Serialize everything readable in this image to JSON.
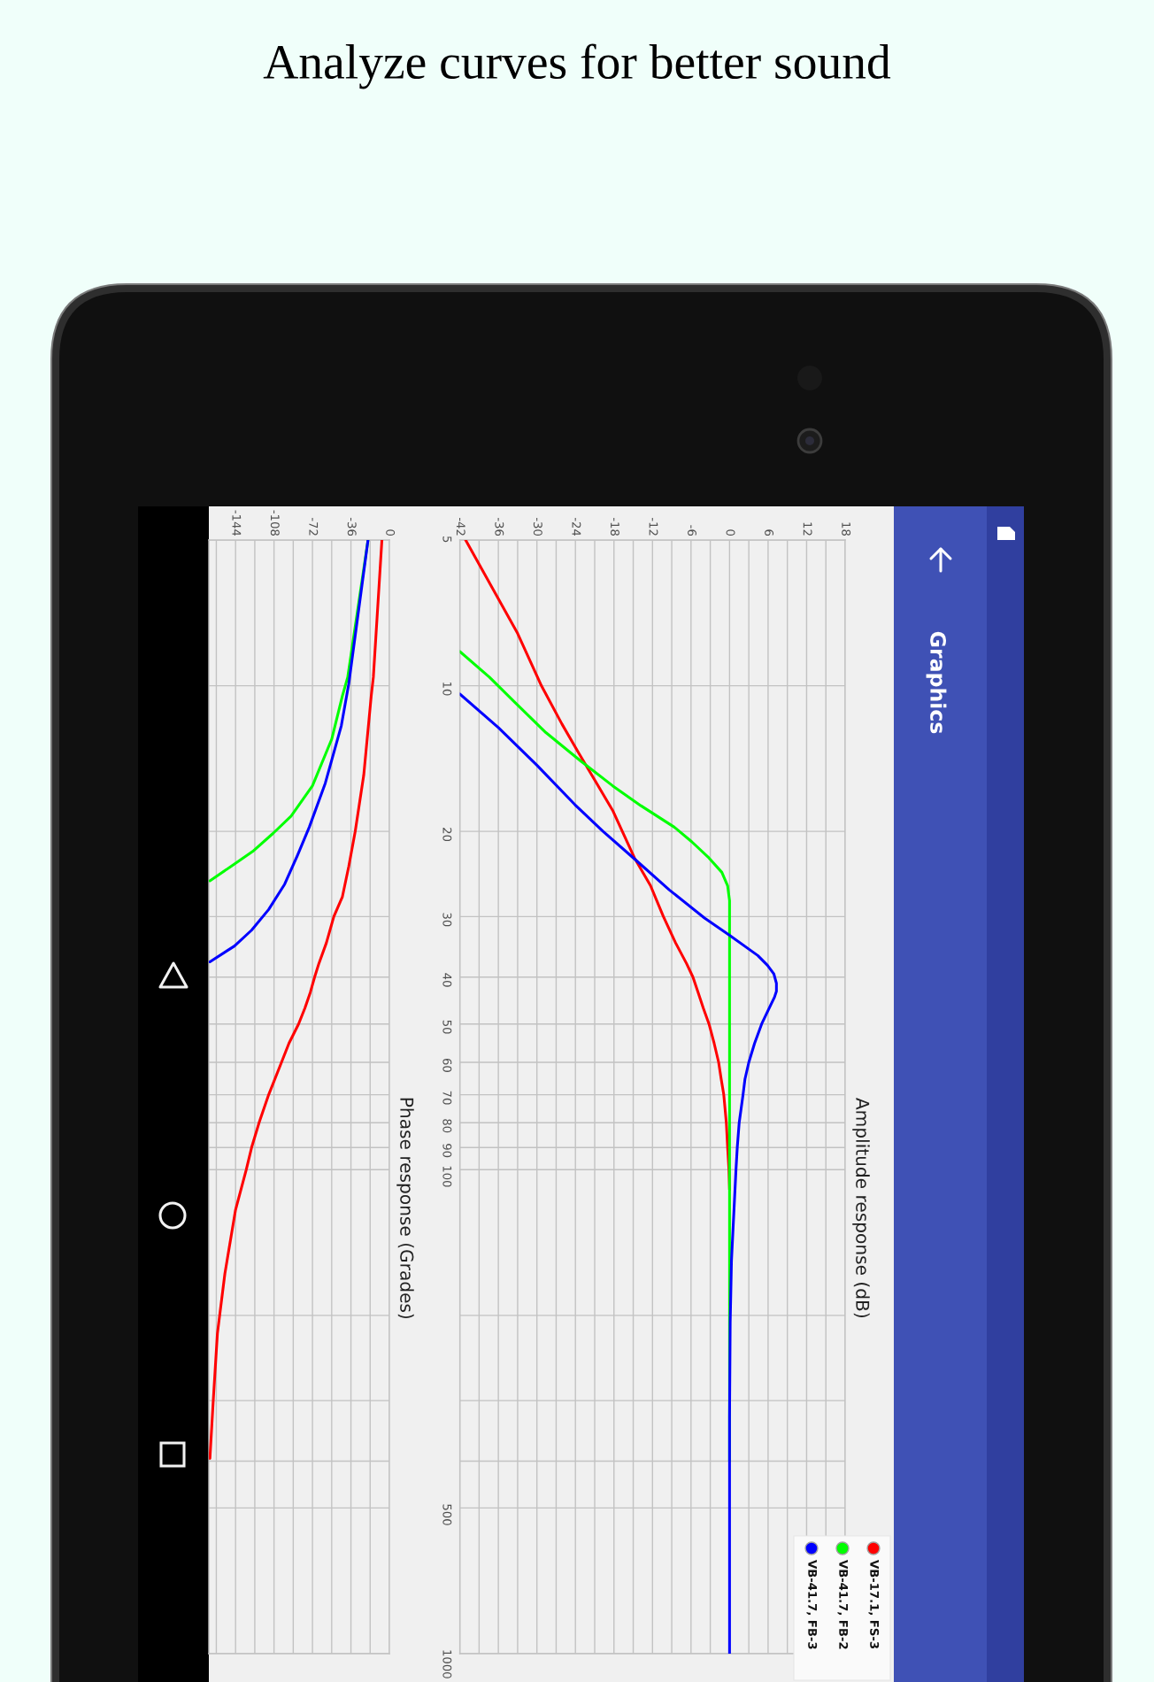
{
  "chart_data": [
    {
      "type": "line",
      "orientation": "horizontal",
      "title": "Amplitude response (dB)",
      "annotations": [
        "Analyze curves for better sound",
        "Graphics"
      ],
      "xlim": [
        -42,
        18
      ],
      "xticks": [
        -42,
        {
          "value": -39,
          "label": null
        },
        -36,
        {
          "value": -33,
          "label": null
        },
        -30,
        {
          "value": -27,
          "label": null
        },
        -24,
        {
          "value": -21,
          "label": null
        },
        -18,
        {
          "value": -15,
          "label": null
        },
        -12,
        {
          "value": -9,
          "label": null
        },
        -6,
        {
          "value": -3,
          "label": null
        },
        0,
        {
          "value": 3,
          "label": null
        },
        6,
        {
          "value": 9,
          "label": null
        },
        12,
        {
          "value": 15,
          "label": null
        },
        18
      ],
      "ylim": [
        1000,
        5
      ],
      "log": "y",
      "yticks": [
        5,
        10,
        20,
        30,
        40,
        50,
        60,
        70,
        80,
        90,
        100,
        {
          "value": 200,
          "label": null
        },
        {
          "value": 300,
          "label": null
        },
        {
          "value": 400,
          "label": null
        },
        500,
        1000
      ],
      "grid": true,
      "legend": "bottom right",
      "series": [
        {
          "name": "VB-17.1, FS-3",
          "color": "#ff0000",
          "x": [
            5,
            7.8,
            10,
            12,
            13.7,
            15.9,
            18.1,
            20,
            22.7,
            25.9,
            30,
            34,
            37.5,
            40,
            43,
            46.3,
            50,
            54.8,
            60,
            65,
            70,
            80,
            90,
            100,
            110
          ],
          "values": [
            -41.1,
            -33,
            -29.3,
            -26.1,
            -23.6,
            -20.7,
            -18.2,
            -16.7,
            -14.8,
            -12.3,
            -10.3,
            -8.4,
            -6.7,
            -5.7,
            -4.9,
            -4.1,
            -3.2,
            -2.4,
            -1.7,
            -1.3,
            -0.9,
            -0.5,
            -0.3,
            -0.1,
            0
          ]
        },
        {
          "name": "VB-41.7, FB-2",
          "color": "#00ff00",
          "x": [
            8.5,
            9.6,
            10.8,
            12.5,
            14.3,
            16.1,
            17.7,
            19.6,
            21,
            22.7,
            24.3,
            25.9,
            27.8,
            40,
            60,
            100,
            200,
            400
          ],
          "values": [
            -42,
            -37.4,
            -33.5,
            -28.6,
            -23.2,
            -18.2,
            -13.8,
            -8.6,
            -5.9,
            -3.2,
            -1.2,
            -0.3,
            0,
            0,
            0,
            0,
            0,
            0
          ]
        },
        {
          "name": "VB-41.7, FB-3",
          "color": "#0000ff",
          "x": [
            10.4,
            12.2,
            14.6,
            17.6,
            20,
            22.8,
            26.4,
            30.2,
            32.8,
            36.1,
            37.8,
            39.4,
            41.2,
            42.8,
            44,
            46.3,
            50,
            54.8,
            60,
            65,
            70,
            80,
            90,
            100,
            154,
            207,
            325,
            1000
          ],
          "values": [
            -42,
            -36,
            -30,
            -24.1,
            -19.7,
            -14.8,
            -9.4,
            -3.9,
            0,
            4.4,
            5.9,
            6.9,
            7.3,
            7.3,
            7.0,
            6.2,
            5,
            3.9,
            3,
            2.4,
            2.1,
            1.5,
            1.2,
            1,
            0.3,
            0.1,
            0,
            0
          ]
        }
      ]
    },
    {
      "type": "line",
      "orientation": "horizontal",
      "title": "Phase response (Grades)",
      "xlim": [
        -169,
        0
      ],
      "xticks": [
        {
          "value": -162,
          "label": null
        },
        -144,
        {
          "value": -126,
          "label": null
        },
        -108,
        {
          "value": -90,
          "label": null
        },
        -72,
        {
          "value": -54,
          "label": null
        },
        -36,
        {
          "value": -18,
          "label": null
        },
        0
      ],
      "ylim": [
        1000,
        5
      ],
      "log": "y",
      "yticks": [
        5,
        10,
        20,
        30,
        40,
        50,
        60,
        70,
        80,
        90,
        100,
        {
          "value": 200,
          "label": null
        },
        {
          "value": 300,
          "label": null
        },
        {
          "value": 400,
          "label": null
        },
        500,
        1000
      ],
      "tick_labels": "x",
      "grid": true,
      "series": [
        {
          "color": "#ff0000",
          "x": [
            5,
            9.6,
            10.5,
            15.3,
            20,
            23.6,
            27.3,
            30,
            34,
            37.5,
            40,
            43,
            46.3,
            50,
            54.8,
            60,
            70,
            80,
            90,
            100,
            121,
            164,
            218,
            303,
            395
          ],
          "values": [
            -7,
            -15,
            -17,
            -24,
            -32,
            -38,
            -44,
            -52,
            -59,
            -66,
            -70,
            -74,
            -79,
            -85,
            -94,
            -101,
            -113,
            -122,
            -129,
            -134,
            -144,
            -154,
            -161,
            -165,
            -168
          ]
        },
        {
          "color": "#00ff00",
          "x": [
            5,
            9.6,
            10.5,
            12.9,
            16.1,
            18.6,
            20.2,
            22,
            23.6,
            25.3
          ],
          "values": [
            -20,
            -39,
            -44,
            -54,
            -72,
            -92,
            -109,
            -128,
            -148,
            -168
          ]
        },
        {
          "color": "#0000ff",
          "x": [
            5,
            9.9,
            12.1,
            15.9,
            19.6,
            22.4,
            25.7,
            29,
            32,
            34.5,
            37.2
          ],
          "values": [
            -20,
            -38,
            -45,
            -60,
            -75,
            -86,
            -98,
            -113,
            -129,
            -145,
            -168
          ]
        }
      ]
    }
  ]
}
